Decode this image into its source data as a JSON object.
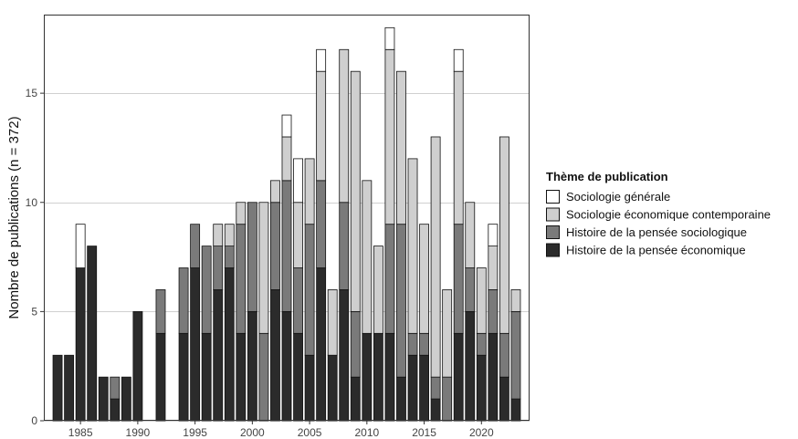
{
  "chart_data": {
    "type": "bar",
    "stacked": true,
    "title": "",
    "xlabel": "",
    "ylabel": "Nombre de publications (n = 372)",
    "ylim": [
      0,
      18.6
    ],
    "xlim": [
      1981.8,
      2024.2
    ],
    "x_ticks": [
      1985,
      1990,
      1995,
      2000,
      2005,
      2010,
      2015,
      2020
    ],
    "y_ticks": [
      0,
      5,
      10,
      15
    ],
    "grid": "horizontal-major",
    "legend": {
      "title": "Thème de publication",
      "position": "right"
    },
    "x": [
      1983,
      1984,
      1985,
      1986,
      1987,
      1988,
      1989,
      1990,
      1991,
      1992,
      1993,
      1994,
      1995,
      1996,
      1997,
      1998,
      1999,
      2000,
      2001,
      2002,
      2003,
      2004,
      2005,
      2006,
      2007,
      2008,
      2009,
      2010,
      2011,
      2012,
      2013,
      2014,
      2015,
      2016,
      2017,
      2018,
      2019,
      2020,
      2021,
      2022,
      2023
    ],
    "series": [
      {
        "name": "Histoire de la pensée économique",
        "color": "#2b2b2b",
        "values": [
          3,
          3,
          7,
          8,
          2,
          1,
          2,
          5,
          0,
          4,
          0,
          4,
          7,
          4,
          6,
          7,
          4,
          5,
          0,
          6,
          5,
          4,
          3,
          7,
          3,
          6,
          2,
          4,
          4,
          4,
          2,
          3,
          3,
          1,
          0,
          4,
          5,
          3,
          4,
          2,
          1
        ]
      },
      {
        "name": "Histoire de la pensée sociologique",
        "color": "#7a7a7a",
        "values": [
          0,
          0,
          0,
          0,
          0,
          1,
          0,
          0,
          0,
          2,
          0,
          3,
          2,
          4,
          2,
          1,
          5,
          5,
          4,
          4,
          6,
          3,
          6,
          4,
          0,
          4,
          3,
          0,
          0,
          5,
          7,
          1,
          1,
          1,
          2,
          5,
          2,
          1,
          2,
          2,
          4
        ]
      },
      {
        "name": "Sociologie économique contemporaine",
        "color": "#cfcfcf",
        "values": [
          0,
          0,
          0,
          0,
          0,
          0,
          0,
          0,
          0,
          0,
          0,
          0,
          0,
          0,
          1,
          1,
          1,
          0,
          6,
          1,
          2,
          3,
          3,
          5,
          3,
          7,
          11,
          7,
          4,
          8,
          7,
          8,
          5,
          11,
          4,
          7,
          3,
          3,
          2,
          9,
          1
        ]
      },
      {
        "name": "Sociologie générale",
        "color": "#ffffff",
        "values": [
          0,
          0,
          2,
          0,
          0,
          0,
          0,
          0,
          0,
          0,
          0,
          0,
          0,
          0,
          0,
          0,
          0,
          0,
          0,
          0,
          1,
          2,
          0,
          1,
          0,
          0,
          0,
          0,
          0,
          1,
          0,
          0,
          0,
          0,
          0,
          1,
          0,
          0,
          1,
          0,
          0
        ]
      }
    ],
    "legend_order": [
      "Sociologie générale",
      "Sociologie économique contemporaine",
      "Histoire de la pensée sociologique",
      "Histoire de la pensée économique"
    ]
  }
}
